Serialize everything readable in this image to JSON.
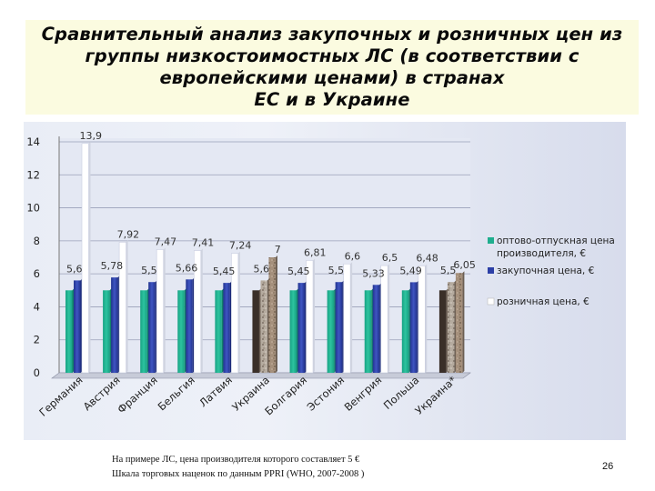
{
  "slide": {
    "title_lines": [
      "Сравнительный анализ закупочных и розничных цен из",
      "группы низкостоимостных ЛС  (в соответствии с",
      "европейскими ценами) в странах",
      "ЕС и в Украине"
    ],
    "footnotes": [
      "На примере ЛС, цена производителя которого составляет 5 €",
      "Шкала торговых наценок по данным PPRI (WHO, 2007-2008 )"
    ],
    "page_number": "26"
  },
  "chart_data": {
    "type": "bar",
    "title": "",
    "xlabel": "",
    "ylabel": "",
    "ylim": [
      0,
      14
    ],
    "yticks": [
      0,
      2,
      4,
      6,
      8,
      10,
      12,
      14
    ],
    "grid": true,
    "legend_position": "right",
    "categories": [
      "Германия",
      "Австрия",
      "Франция",
      "Бельгия",
      "Латвия",
      "Украина",
      "Болгария",
      "Эстония",
      "Венгрия",
      "Польша",
      "Украина*"
    ],
    "series": [
      {
        "name": "оптово-отпускная цена производителя, €",
        "color": "#1fae8e",
        "values": [
          5,
          5,
          5,
          5,
          5,
          5,
          5,
          5,
          5,
          5,
          5
        ]
      },
      {
        "name": "закупочная цена, €",
        "color": "#2c3fa6",
        "values": [
          5.6,
          5.78,
          5.5,
          5.66,
          5.45,
          5.6,
          5.45,
          5.5,
          5.33,
          5.49,
          5.5
        ]
      },
      {
        "name": "розничная цена, €",
        "color": "#ffffff",
        "values": [
          13.9,
          7.92,
          7.47,
          7.41,
          7.24,
          7,
          6.81,
          6.6,
          6.5,
          6.48,
          6.05
        ]
      }
    ],
    "data_labels": [
      {
        "category": "Германия",
        "series": "закупочная цена, €",
        "text": "5,6"
      },
      {
        "category": "Германия",
        "series": "розничная цена, €",
        "text": "13,9"
      },
      {
        "category": "Австрия",
        "series": "закупочная цена, €",
        "text": "5,78"
      },
      {
        "category": "Австрия",
        "series": "розничная цена, €",
        "text": "7,92"
      },
      {
        "category": "Франция",
        "series": "закупочная цена, €",
        "text": "5,5"
      },
      {
        "category": "Франция",
        "series": "розничная цена, €",
        "text": "7,47"
      },
      {
        "category": "Бельгия",
        "series": "закупочная цена, €",
        "text": "5,66"
      },
      {
        "category": "Бельгия",
        "series": "розничная цена, €",
        "text": "7,41"
      },
      {
        "category": "Латвия",
        "series": "закупочная цена, €",
        "text": "5,45"
      },
      {
        "category": "Латвия",
        "series": "розничная цена, €",
        "text": "7,24"
      },
      {
        "category": "Украина",
        "series": "закупочная цена, €",
        "text": "5,6"
      },
      {
        "category": "Украина",
        "series": "розничная цена, €",
        "text": "7"
      },
      {
        "category": "Болгария",
        "series": "закупочная цена, €",
        "text": "5,45"
      },
      {
        "category": "Болгария",
        "series": "розничная цена, €",
        "text": "6,81"
      },
      {
        "category": "Эстония",
        "series": "закупочная цена, €",
        "text": "5,5"
      },
      {
        "category": "Эстония",
        "series": "розничная цена, €",
        "text": "6,6"
      },
      {
        "category": "Венгрия",
        "series": "закупочная цена, €",
        "text": "5,33"
      },
      {
        "category": "Венгрия",
        "series": "розничная цена, €",
        "text": "6,5"
      },
      {
        "category": "Польша",
        "series": "закупочная цена, €",
        "text": "5,49"
      },
      {
        "category": "Польша",
        "series": "розничная цена, €",
        "text": "6,48"
      },
      {
        "category": "Украина*",
        "series": "закупочная цена, €",
        "text": "5,5"
      },
      {
        "category": "Украина*",
        "series": "розничная цена, €",
        "text": "6,05"
      }
    ],
    "highlighted_categories": [
      "Украина",
      "Украина*"
    ],
    "highlight_colors": [
      "#3a2f28",
      "#b5ab9f",
      "#a5907c"
    ]
  }
}
